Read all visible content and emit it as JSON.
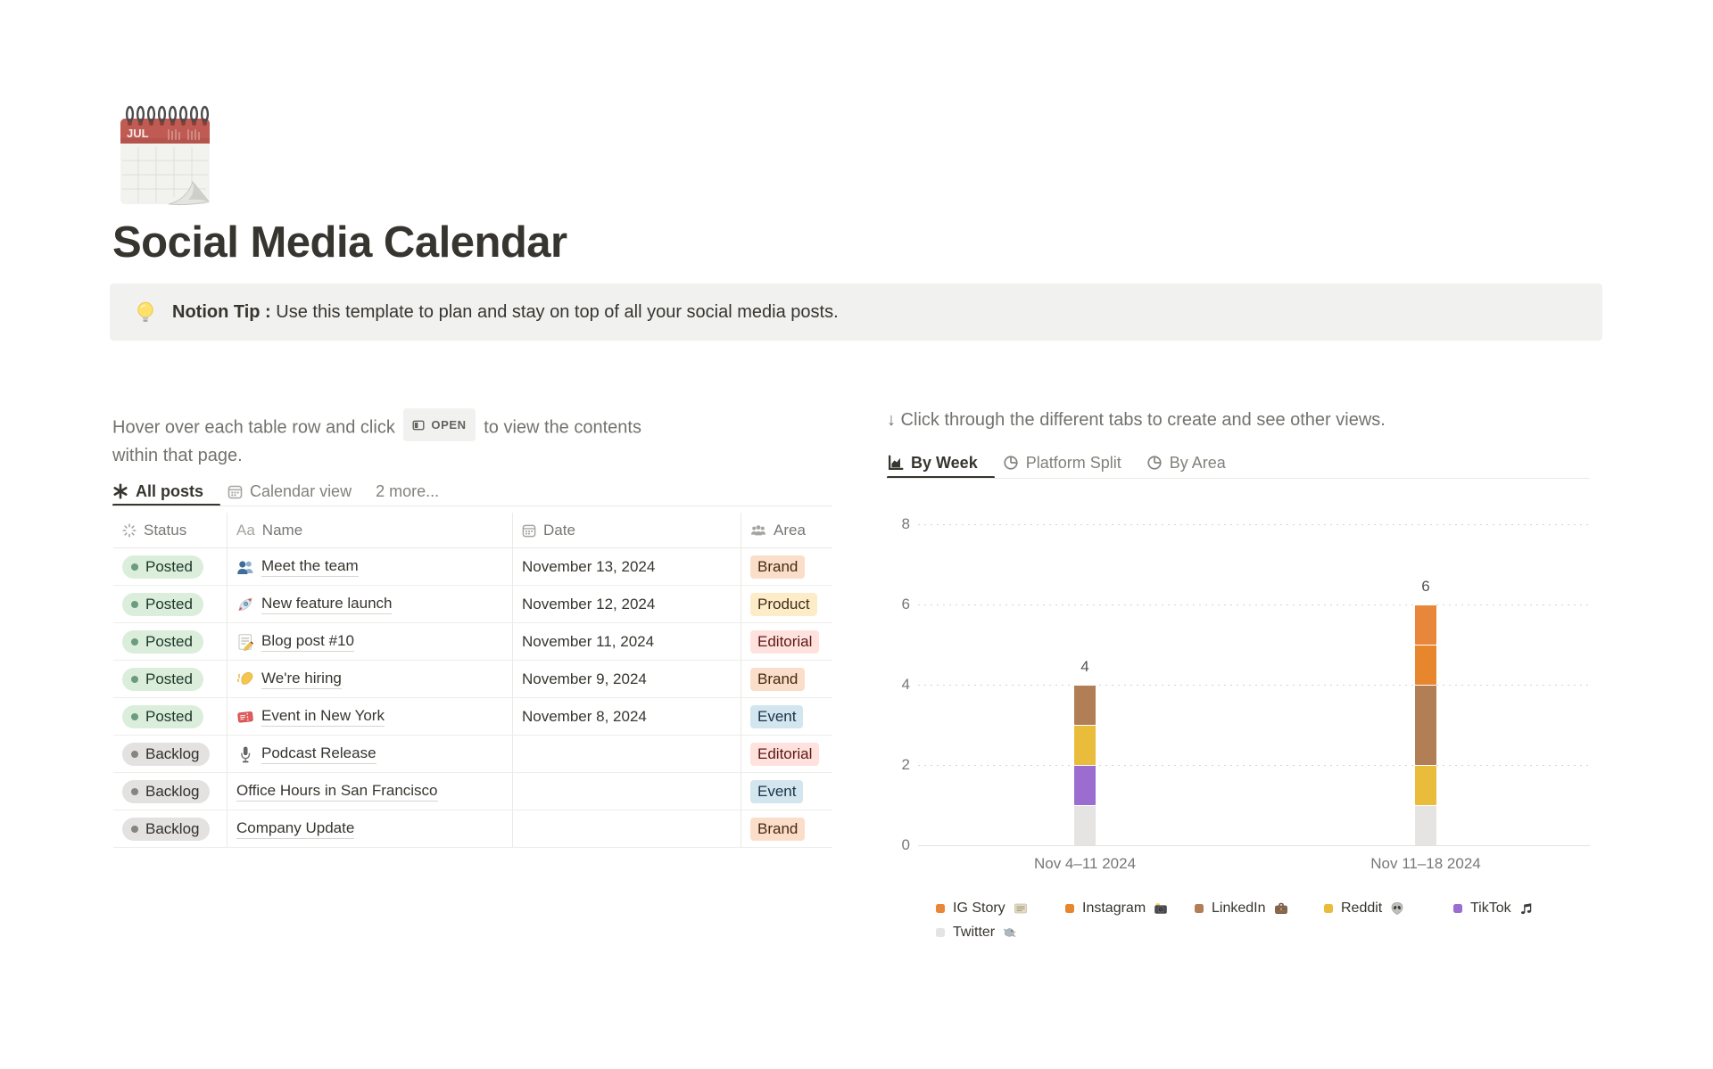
{
  "page": {
    "title": "Social Media Calendar",
    "icon": "spiral-calendar"
  },
  "callout": {
    "icon": "light-bulb",
    "label": "Notion Tip :",
    "text": "Use this template to plan and stay on top of all your social media posts."
  },
  "left": {
    "instruction": {
      "before": "Hover over each table row and click",
      "badge": "OPEN",
      "after": "to view the contents within that page."
    },
    "tabs": [
      {
        "label": "All posts",
        "icon": "asterisk",
        "active": true
      },
      {
        "label": "Calendar view",
        "icon": "calendar",
        "active": false
      },
      {
        "label": "2 more...",
        "icon": "",
        "active": false
      }
    ],
    "table": {
      "columns": [
        "Status",
        "Name",
        "Date",
        "Area"
      ],
      "column_icons": [
        "status-spinner",
        "Aa",
        "calendar",
        "people"
      ],
      "rows": [
        {
          "status": "Posted",
          "icon": "busts-in-silhouette",
          "name": "Meet the team",
          "date": "November 13, 2024",
          "area": "Brand"
        },
        {
          "status": "Posted",
          "icon": "rocket",
          "name": "New feature launch",
          "date": "November 12, 2024",
          "area": "Product"
        },
        {
          "status": "Posted",
          "icon": "memo",
          "name": "Blog post #10",
          "date": "November 11, 2024",
          "area": "Editorial"
        },
        {
          "status": "Posted",
          "icon": "waving-hand",
          "name": "We're hiring",
          "date": "November 9, 2024",
          "area": "Brand"
        },
        {
          "status": "Posted",
          "icon": "admission-ticket",
          "name": "Event in New York",
          "date": "November 8, 2024",
          "area": "Event"
        },
        {
          "status": "Backlog",
          "icon": "microphone",
          "name": "Podcast Release",
          "date": "",
          "area": "Editorial"
        },
        {
          "status": "Backlog",
          "icon": "",
          "name": "Office Hours in San Francisco",
          "date": "",
          "area": "Event"
        },
        {
          "status": "Backlog",
          "icon": "",
          "name": "Company Update",
          "date": "",
          "area": "Brand"
        }
      ],
      "status_colors": {
        "Posted": {
          "bg": "#DBEDDB",
          "dot": "#6C9B7D",
          "text": "#1C3829"
        },
        "Backlog": {
          "bg": "#E3E2E0",
          "dot": "#86857F",
          "text": "#32302C"
        }
      },
      "area_colors": {
        "Brand": {
          "bg": "#FADEC9",
          "text": "#49290E"
        },
        "Product": {
          "bg": "#FDECC8",
          "text": "#402C1B"
        },
        "Editorial": {
          "bg": "#FFE2DD",
          "text": "#5D1715"
        },
        "Event": {
          "bg": "#D3E5EF",
          "text": "#183347"
        }
      }
    }
  },
  "right": {
    "instruction": "↓ Click through the different tabs to create and see other views.",
    "tabs": [
      {
        "label": "By Week",
        "icon": "bar-chart",
        "active": true
      },
      {
        "label": "Platform Split",
        "icon": "pie-chart",
        "active": false
      },
      {
        "label": "By Area",
        "icon": "pie-chart",
        "active": false
      }
    ]
  },
  "chart_data": {
    "type": "bar",
    "stacked": true,
    "title": "",
    "xlabel": "",
    "ylabel": "",
    "categories": [
      "Nov 4–11 2024",
      "Nov 11–18 2024"
    ],
    "series": [
      {
        "name": "IG Story",
        "emoji": "newspaper",
        "color": "#E8873A",
        "values": [
          0,
          1
        ]
      },
      {
        "name": "Instagram",
        "emoji": "camera",
        "color": "#E8862E",
        "values": [
          0,
          1
        ]
      },
      {
        "name": "LinkedIn",
        "emoji": "briefcase",
        "color": "#B27E56",
        "values": [
          1,
          2
        ]
      },
      {
        "name": "Reddit",
        "emoji": "alien",
        "color": "#E9BC3B",
        "values": [
          1,
          1
        ]
      },
      {
        "name": "TikTok",
        "emoji": "musical-note",
        "color": "#9B6DD0",
        "values": [
          1,
          0
        ]
      },
      {
        "name": "Twitter",
        "emoji": "bird",
        "color": "#E5E4E2",
        "values": [
          1,
          1
        ]
      }
    ],
    "stack_order_bottom_to_top": [
      "Twitter",
      "TikTok",
      "Reddit",
      "LinkedIn",
      "Instagram",
      "IG Story"
    ],
    "totals": [
      4,
      6
    ],
    "yticks": [
      0,
      2,
      4,
      6,
      8
    ],
    "ylim": [
      0,
      8
    ],
    "grid": "dotted-horizontal",
    "legend_position": "bottom"
  }
}
